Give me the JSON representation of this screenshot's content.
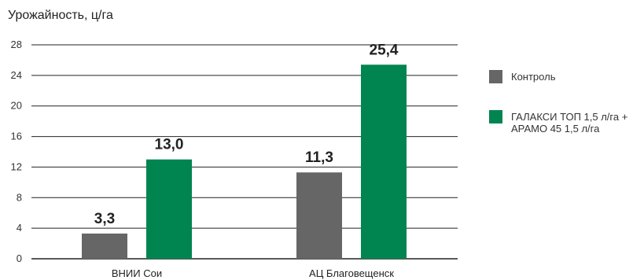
{
  "chart_data": {
    "type": "bar",
    "title": "Урожайность, ц/га",
    "categories": [
      "ВНИИ Сои",
      "АЦ Благовещенск"
    ],
    "series": [
      {
        "name": "Контроль",
        "values": [
          3.3,
          11.3
        ],
        "labels": [
          "3,3",
          "11,3"
        ],
        "color": "#666666"
      },
      {
        "name": "ГАЛАКСИ ТОП 1,5 л/га + АРАМО 45 1,5 л/га",
        "legend_lines": [
          "ГАЛАКСИ ТОП 1,5 л/га +",
          "АРАМО 45 1,5 л/га"
        ],
        "values": [
          13.0,
          25.4
        ],
        "labels": [
          "13,0",
          "25,4"
        ],
        "color": "#008550"
      }
    ],
    "ylim": [
      0,
      28
    ],
    "yticks": [
      0,
      4,
      8,
      12,
      16,
      20,
      24,
      28
    ],
    "grid": true,
    "legend": "right"
  }
}
